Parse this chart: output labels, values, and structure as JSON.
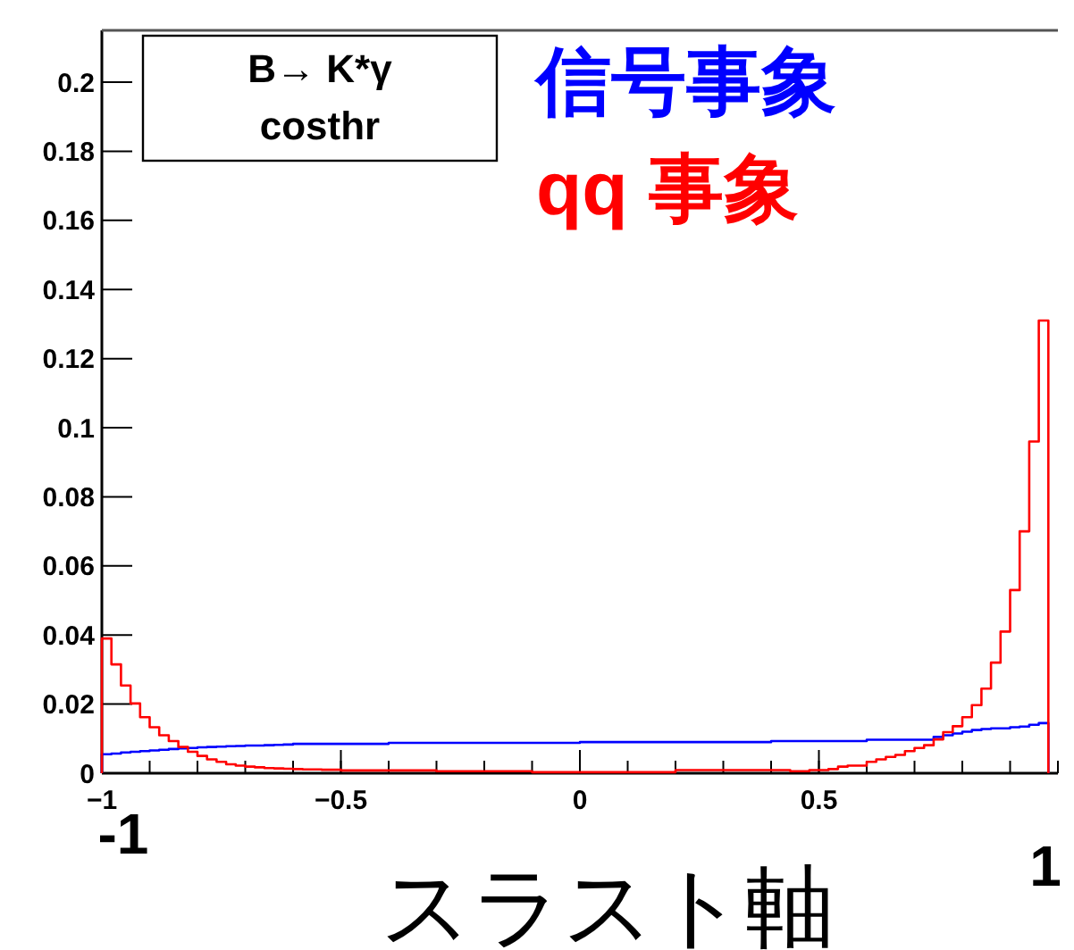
{
  "chart_data": {
    "type": "histogram",
    "title": "B→ K*γ",
    "subtitle": "costhr",
    "xlabel": "スラスト軸",
    "annotations": [
      "-1",
      "1"
    ],
    "bins": [
      -1,
      -0.98,
      -0.96,
      -0.94,
      -0.92,
      -0.9,
      -0.88,
      -0.86,
      -0.84,
      -0.82,
      -0.8,
      -0.78,
      -0.76,
      -0.74,
      -0.72,
      -0.7,
      -0.68,
      -0.66,
      -0.64,
      -0.62,
      -0.6,
      -0.58,
      -0.56,
      -0.54,
      -0.52,
      -0.5,
      -0.48,
      -0.46,
      -0.44,
      -0.42,
      -0.4,
      -0.38,
      -0.36,
      -0.34,
      -0.32,
      -0.3,
      -0.28,
      -0.26,
      -0.24,
      -0.22,
      -0.2,
      -0.18,
      -0.16,
      -0.14,
      -0.12,
      -0.1,
      -0.08,
      -0.06,
      -0.04,
      -0.02,
      0,
      0.02,
      0.04,
      0.06,
      0.08,
      0.1,
      0.12,
      0.14,
      0.16,
      0.18,
      0.2,
      0.22,
      0.24,
      0.26,
      0.28,
      0.3,
      0.32,
      0.34,
      0.36,
      0.38,
      0.4,
      0.42,
      0.44,
      0.46,
      0.48,
      0.5,
      0.52,
      0.54,
      0.56,
      0.58,
      0.6,
      0.62,
      0.64,
      0.66,
      0.68,
      0.7,
      0.72,
      0.74,
      0.76,
      0.78,
      0.8,
      0.82,
      0.84,
      0.86,
      0.88,
      0.9,
      0.92,
      0.94,
      0.96,
      0.98
    ],
    "series": [
      {
        "name": "信号事象",
        "color": "#0000ff",
        "values": [
          0.0055,
          0.0057,
          0.006,
          0.0062,
          0.0064,
          0.0066,
          0.0068,
          0.007,
          0.0072,
          0.0073,
          0.0075,
          0.0076,
          0.0077,
          0.0078,
          0.0079,
          0.008,
          0.008,
          0.0081,
          0.0082,
          0.0083,
          0.0085,
          0.0085,
          0.0085,
          0.0085,
          0.0085,
          0.0085,
          0.0085,
          0.0085,
          0.0085,
          0.0085,
          0.0088,
          0.0088,
          0.0088,
          0.0088,
          0.0088,
          0.0088,
          0.0088,
          0.0088,
          0.0088,
          0.0088,
          0.0088,
          0.0088,
          0.0088,
          0.0088,
          0.0088,
          0.0088,
          0.0088,
          0.0088,
          0.0088,
          0.0088,
          0.009,
          0.009,
          0.009,
          0.009,
          0.009,
          0.009,
          0.009,
          0.009,
          0.009,
          0.009,
          0.009,
          0.009,
          0.009,
          0.009,
          0.009,
          0.009,
          0.009,
          0.009,
          0.009,
          0.009,
          0.0093,
          0.0093,
          0.0093,
          0.0093,
          0.0093,
          0.0093,
          0.0093,
          0.0093,
          0.0093,
          0.0093,
          0.0097,
          0.0097,
          0.0097,
          0.0097,
          0.0097,
          0.0097,
          0.0097,
          0.0105,
          0.011,
          0.0115,
          0.012,
          0.0125,
          0.0128,
          0.013,
          0.013,
          0.0133,
          0.0135,
          0.014,
          0.0145
        ]
      },
      {
        "name": "qq 事象",
        "color": "#ff0000",
        "values": [
          0.039,
          0.0315,
          0.0254,
          0.0202,
          0.0162,
          0.0133,
          0.011,
          0.0093,
          0.0076,
          0.0062,
          0.005,
          0.004,
          0.0033,
          0.0026,
          0.0022,
          0.0019,
          0.0017,
          0.0015,
          0.0014,
          0.0013,
          0.0012,
          0.0011,
          0.0011,
          0.001,
          0.001,
          0.0008,
          0.0008,
          0.0008,
          0.0008,
          0.0008,
          0.0008,
          0.0008,
          0.0008,
          0.0008,
          0.0008,
          0.0006,
          0.0006,
          0.0006,
          0.0006,
          0.0006,
          0.0006,
          0.0006,
          0.0006,
          0.0006,
          0.0006,
          0.0003,
          0.0003,
          0.0003,
          0.0003,
          0.0003,
          0.0003,
          0.0003,
          0.0003,
          0.0003,
          0.0003,
          0.0003,
          0.0003,
          0.0003,
          0.0003,
          0.0003,
          0.0009,
          0.0009,
          0.0009,
          0.0009,
          0.0009,
          0.0009,
          0.0009,
          0.0009,
          0.0009,
          0.0009,
          0.0009,
          0.0009,
          0.0006,
          0.0006,
          0.0009,
          0.0009,
          0.0012,
          0.0019,
          0.0022,
          0.0022,
          0.0033,
          0.004,
          0.0047,
          0.0053,
          0.0064,
          0.0073,
          0.0081,
          0.0098,
          0.0119,
          0.0136,
          0.0162,
          0.0197,
          0.0245,
          0.032,
          0.041,
          0.053,
          0.07,
          0.096,
          0.131
        ]
      }
    ],
    "xlim": [
      -1,
      1
    ],
    "xticks": [
      {
        "value": -1,
        "label": "−1"
      },
      {
        "value": -0.5,
        "label": "−0.5"
      },
      0,
      0.5
    ],
    "ylim": [
      0,
      0.215
    ],
    "yticks": [
      0,
      0.02,
      0.04,
      0.06,
      0.08,
      0.1,
      0.12,
      0.14,
      0.16,
      0.18,
      0.2
    ],
    "legend": "top right"
  }
}
